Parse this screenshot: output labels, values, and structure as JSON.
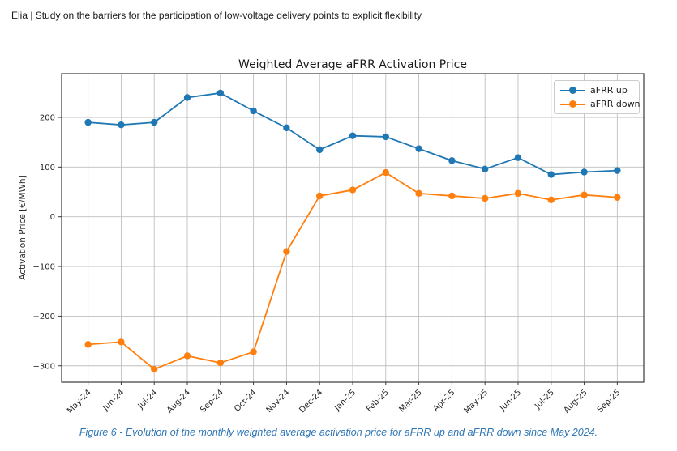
{
  "page": {
    "header": "Elia | Study on the barriers for the participation of low-voltage delivery points to explicit flexibility",
    "caption": "Figure 6 - Evolution of the monthly weighted average activation price for aFRR up and aFRR down since May 2024."
  },
  "chart_data": {
    "type": "line",
    "title": "Weighted Average aFRR Activation Price",
    "xlabel": "",
    "ylabel": "Activation Price [€/MWh]",
    "categories": [
      "May-24",
      "Jun-24",
      "Jul-24",
      "Aug-24",
      "Sep-24",
      "Oct-24",
      "Nov-24",
      "Dec-24",
      "Jan-25",
      "Feb-25",
      "Mar-25",
      "Apr-25",
      "May-25",
      "Jun-25",
      "Jul-25",
      "Aug-25",
      "Sep-25"
    ],
    "series": [
      {
        "name": "aFRR up",
        "color": "#1f77b4",
        "values": [
          190,
          185,
          190,
          240,
          249,
          213,
          179,
          135,
          163,
          161,
          137,
          113,
          96,
          119,
          85,
          90,
          93
        ]
      },
      {
        "name": "aFRR down",
        "color": "#ff7f0e",
        "values": [
          -257,
          -252,
          -307,
          -280,
          -294,
          -272,
          -70,
          42,
          54,
          89,
          47,
          42,
          37,
          47,
          34,
          44,
          39
        ]
      }
    ],
    "ylim": [
      -333,
      288
    ],
    "yticks": [
      -300,
      -200,
      -100,
      0,
      100,
      200
    ],
    "grid": true,
    "legend_position": "upper right",
    "marker": "circle",
    "x_tick_rotation": 45
  },
  "colors": {
    "grid": "#bfbfbf",
    "spine": "#3a3a3a",
    "tick_text": "#262626",
    "caption_text": "#2e75b5"
  }
}
